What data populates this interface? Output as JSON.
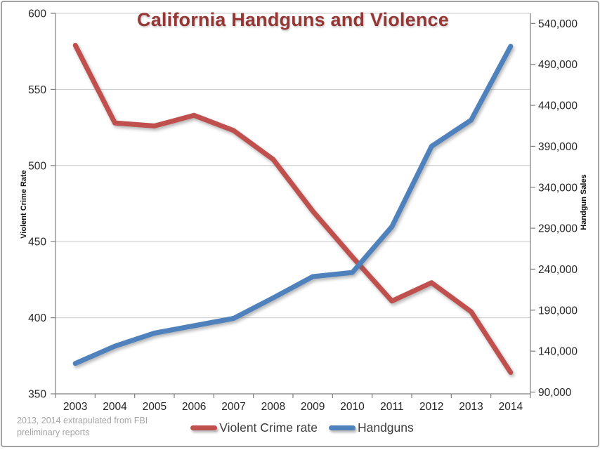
{
  "chart_data": {
    "type": "line",
    "title": "California Handguns and Violence",
    "categories": [
      "2003",
      "2004",
      "2005",
      "2006",
      "2007",
      "2008",
      "2009",
      "2010",
      "2011",
      "2012",
      "2013",
      "2014"
    ],
    "series": [
      {
        "name": "Violent Crime rate",
        "axis": "left",
        "color": "#C0504D",
        "values": [
          579,
          528,
          526,
          533,
          523,
          504,
          470,
          440,
          411,
          423,
          404,
          364
        ]
      },
      {
        "name": "Handguns",
        "axis": "right",
        "color": "#4F81BD",
        "values": [
          125000,
          146000,
          162000,
          171000,
          180000,
          205000,
          231000,
          236000,
          292000,
          390000,
          422000,
          512000
        ]
      }
    ],
    "left_axis": {
      "label": "Violent Crime Rate",
      "min": 350,
      "max": 600,
      "step": 50,
      "tick_labels": [
        "350",
        "400",
        "450",
        "500",
        "550",
        "600"
      ]
    },
    "right_axis": {
      "label": "Handgun Sales",
      "min": 90000,
      "max": 540000,
      "step": 50000,
      "tick_labels": [
        "90,000",
        "140,000",
        "190,000",
        "240,000",
        "290,000",
        "340,000",
        "390,000",
        "440,000",
        "490,000",
        "540,000"
      ]
    },
    "legend_position": "bottom",
    "grid": true
  },
  "footnote": {
    "line1": "2013, 2014 extrapulated from FBI",
    "line2": "preliminary reports"
  },
  "colors": {
    "title": "#953735",
    "violent_crime_line": "#C0504D",
    "handguns_line": "#4F81BD",
    "gridline": "#c8c8c8",
    "axis_line": "#7f7f7f",
    "tick_text": "#262626",
    "footnote_text": "#a6a6a6"
  }
}
